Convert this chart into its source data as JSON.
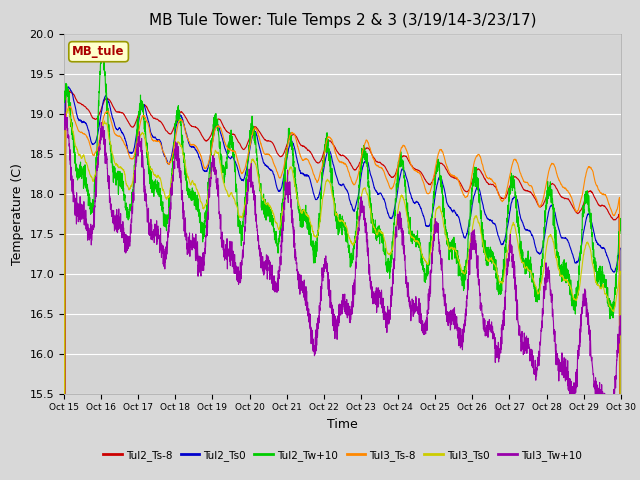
{
  "title": "MB Tule Tower: Tule Temps 2 & 3 (3/19/14-3/23/17)",
  "xlabel": "Time",
  "ylabel": "Temperature (C)",
  "ylim": [
    15.5,
    20.0
  ],
  "xtick_labels": [
    "Oct 15",
    "Oct 16",
    "Oct 17",
    "Oct 18",
    "Oct 19",
    "Oct 20",
    "Oct 21",
    "Oct 22",
    "Oct 23",
    "Oct 24",
    "Oct 25",
    "Oct 26",
    "Oct 27",
    "Oct 28",
    "Oct 29",
    "Oct 30"
  ],
  "annotation_text": "MB_tule",
  "annotation_box_color": "#ffffcc",
  "annotation_text_color": "#aa0000",
  "series_colors": {
    "Tul2_Ts-8": "#cc0000",
    "Tul2_Ts0": "#0000cc",
    "Tul2_Tw+10": "#00cc00",
    "Tul3_Ts-8": "#ff8800",
    "Tul3_Ts0": "#cccc00",
    "Tul3_Tw+10": "#9900aa"
  },
  "background_color": "#d8d8d8",
  "plot_bg_color": "#d4d4d4",
  "grid_color": "#ffffff",
  "title_fontsize": 11
}
